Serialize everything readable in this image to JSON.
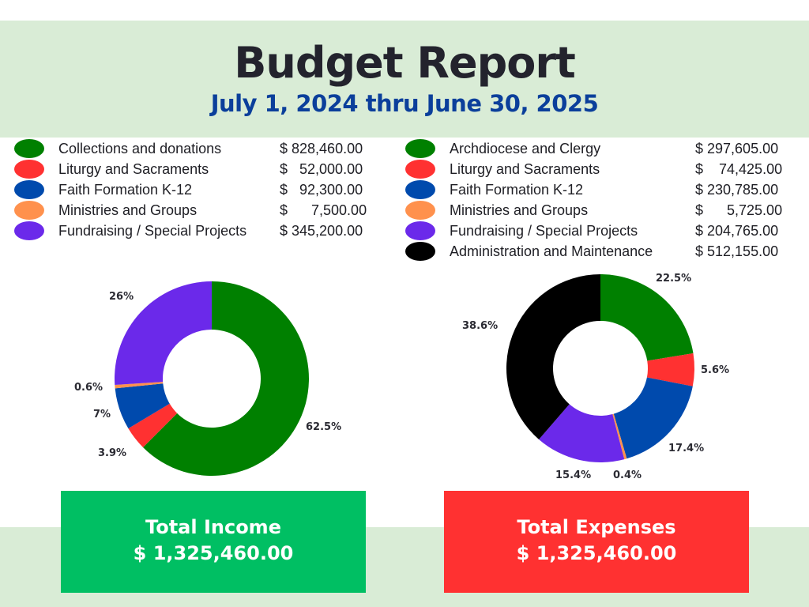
{
  "title": "Budget Report",
  "subtitle": "July 1, 2024 thru June 30, 2025",
  "colors": {
    "green": "#008000",
    "red": "#ff3131",
    "blue": "#004aad",
    "orange": "#ff914d",
    "purple": "#6b29ea",
    "black": "#000000",
    "income_box": "#00bf63",
    "expense_box": "#ff3131",
    "band": "#d9ecd6"
  },
  "income_legend": [
    {
      "label": "Collections and donations",
      "amount": "$ 828,460.00",
      "color": "#008000"
    },
    {
      "label": "Liturgy and Sacraments",
      "amount": "$   52,000.00",
      "color": "#ff3131"
    },
    {
      "label": "Faith Formation K-12",
      "amount": "$   92,300.00",
      "color": "#004aad"
    },
    {
      "label": "Ministries and Groups",
      "amount": "$      7,500.00",
      "color": "#ff914d"
    },
    {
      "label": "Fundraising / Special Projects",
      "amount": "$ 345,200.00",
      "color": "#6b29ea"
    }
  ],
  "expense_legend": [
    {
      "label": "Archdiocese and Clergy",
      "amount": "$ 297,605.00",
      "color": "#008000"
    },
    {
      "label": " Liturgy and Sacraments",
      "amount": "$    74,425.00",
      "color": "#ff3131"
    },
    {
      "label": "Faith Formation K-12",
      "amount": "$ 230,785.00",
      "color": "#004aad"
    },
    {
      "label": "Ministries and Groups",
      "amount": "$      5,725.00",
      "color": "#ff914d"
    },
    {
      "label": "Fundraising / Special Projects",
      "amount": "$ 204,765.00",
      "color": "#6b29ea"
    },
    {
      "label": "Administration and Maintenance",
      "amount": "$ 512,155.00",
      "color": "#000000"
    }
  ],
  "chart_data": [
    {
      "type": "pie",
      "categories": [
        "Collections and donations",
        "Liturgy and Sacraments",
        "Faith Formation K-12",
        "Ministries and Groups",
        "Fundraising / Special Projects"
      ],
      "values": [
        828460,
        52000,
        92300,
        7500,
        345200
      ],
      "data_labels": [
        "62.5%",
        "3.9%",
        "7%",
        "0.6%",
        "26%"
      ],
      "colors": [
        "#008000",
        "#ff3131",
        "#004aad",
        "#ff914d",
        "#6b29ea"
      ],
      "donut": true,
      "title": "",
      "legend": "top"
    },
    {
      "type": "pie",
      "categories": [
        "Archdiocese and Clergy",
        "Liturgy and Sacraments",
        "Faith Formation K-12",
        "Ministries and Groups",
        "Fundraising / Special Projects",
        "Administration and Maintenance"
      ],
      "values": [
        297605,
        74425,
        230785,
        5725,
        204765,
        512155
      ],
      "data_labels": [
        "22.5%",
        "5.6%",
        "17.4%",
        "0.4%",
        "15.4%",
        "38.6%"
      ],
      "colors": [
        "#008000",
        "#ff3131",
        "#004aad",
        "#ff914d",
        "#6b29ea",
        "#000000"
      ],
      "donut": true,
      "title": "",
      "legend": "top"
    }
  ],
  "totals": {
    "income_label": "Total Income",
    "income_value": "$ 1,325,460.00",
    "expense_label": "Total Expenses",
    "expense_value": "$ 1,325,460.00"
  }
}
